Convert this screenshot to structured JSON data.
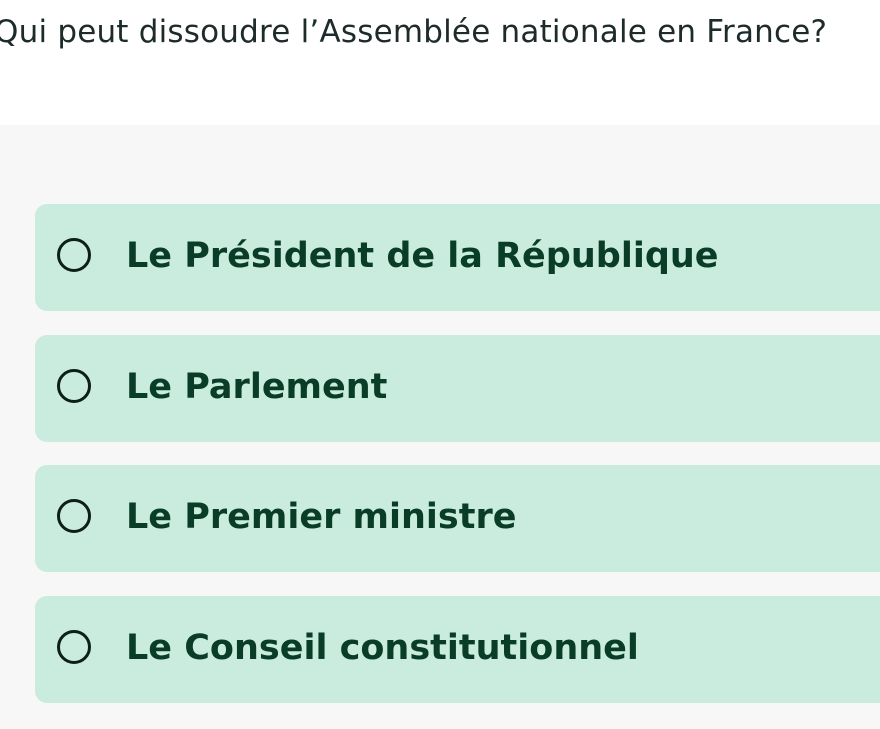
{
  "question": {
    "text": "Qui peut dissoudre l’Assemblée nationale en France?"
  },
  "options": [
    {
      "label": "Le Président de la République",
      "selected": false
    },
    {
      "label": "Le Parlement",
      "selected": false
    },
    {
      "label": "Le Premier ministre",
      "selected": false
    },
    {
      "label": "Le Conseil constitutionnel",
      "selected": false
    }
  ],
  "colors": {
    "option_background": "#c9ecde",
    "option_text": "#0a3d28",
    "panel_background": "#f7f7f7",
    "question_text": "#1d2b2a"
  }
}
